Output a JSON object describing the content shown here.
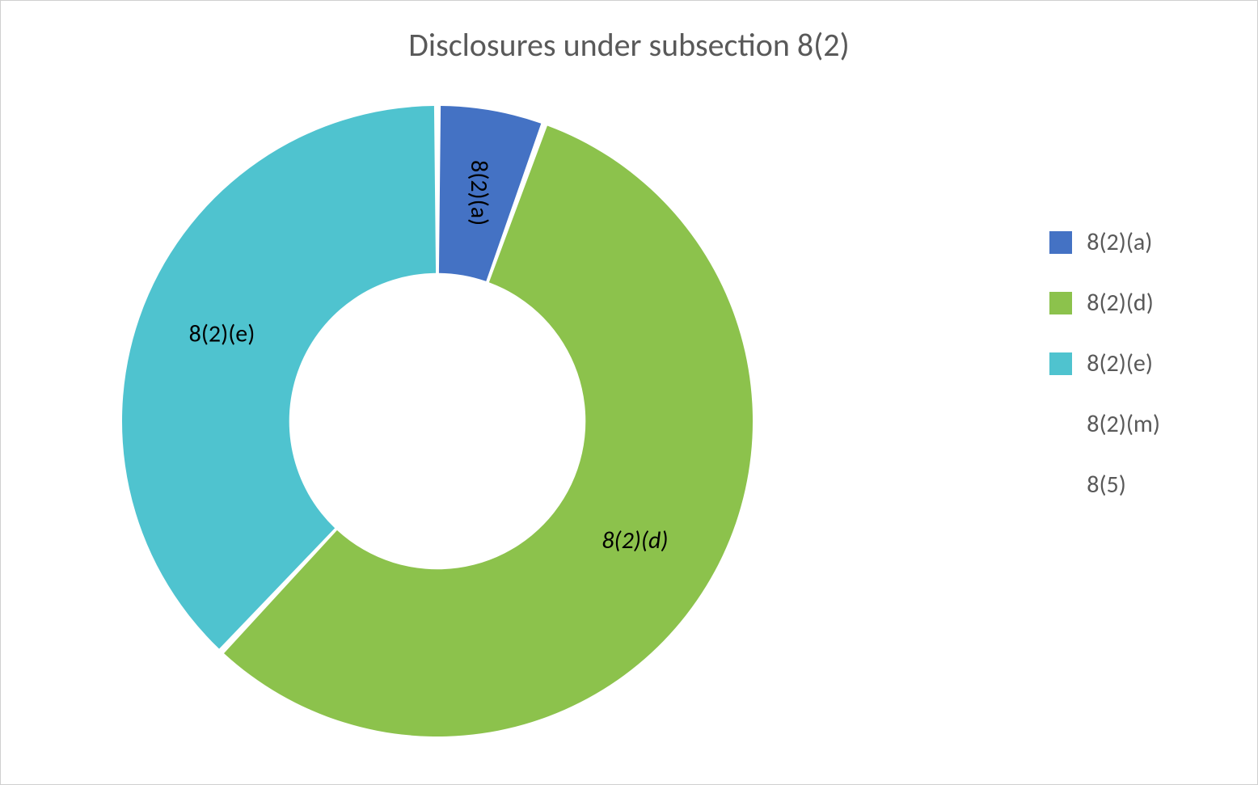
{
  "chart": {
    "type": "donut",
    "title": "Disclosures under subsection 8(2)",
    "title_fontsize": 40,
    "title_color": "#595959",
    "background_color": "#ffffff",
    "border_color": "#d0d0d0",
    "slice_gap_deg": 1.2,
    "slice_gap_color": "#ffffff",
    "inner_radius_ratio": 0.47,
    "series": [
      {
        "label": "8(2)(a)",
        "value": 5.5,
        "color": "#4472c4",
        "show_label": true
      },
      {
        "label": "8(2)(d)",
        "value": 56.5,
        "color": "#8cc24c",
        "show_label": true,
        "italic": true
      },
      {
        "label": "8(2)(e)",
        "value": 38.0,
        "color": "#4fc3cf",
        "show_label": true
      },
      {
        "label": "8(2)(m)",
        "value": 0,
        "color": "#ffffff",
        "show_label": false
      },
      {
        "label": "8(5)",
        "value": 0,
        "color": "#ffffff",
        "show_label": false
      }
    ],
    "label_fontsize": 30,
    "label_color": "#000000",
    "legend": {
      "position": "right",
      "fontsize": 30,
      "text_color": "#595959",
      "swatch_size": 28
    }
  }
}
